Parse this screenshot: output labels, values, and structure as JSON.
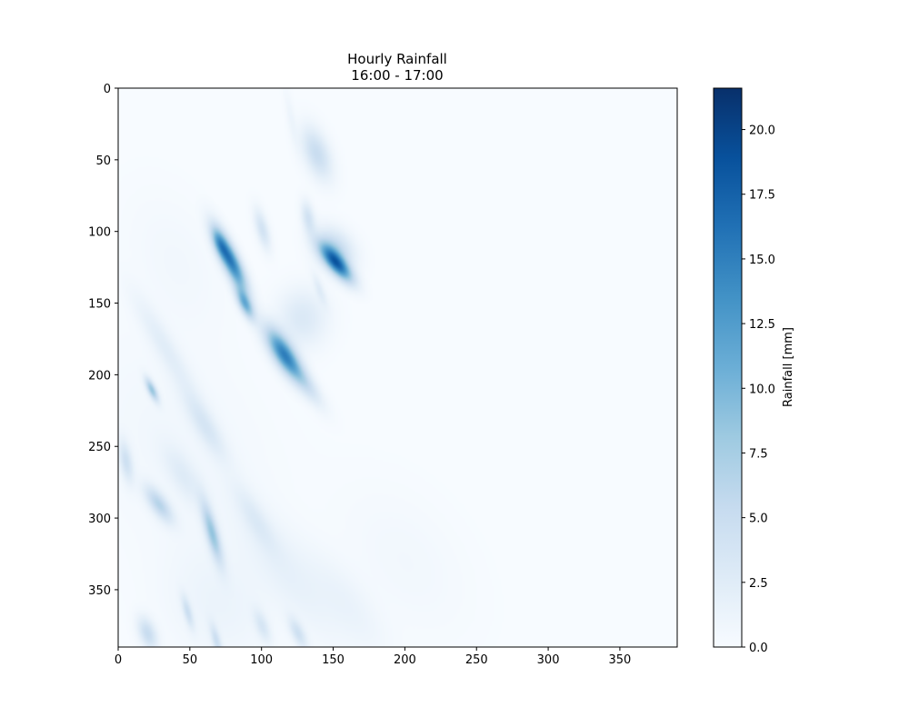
{
  "chart_data": {
    "type": "heatmap",
    "title": "Hourly Rainfall",
    "subtitle": "16:00 - 17:00",
    "xlabel": "",
    "ylabel": "",
    "xlim": [
      0,
      390
    ],
    "ylim": [
      390,
      0
    ],
    "xticks": [
      0,
      50,
      100,
      150,
      200,
      250,
      300,
      350
    ],
    "yticks": [
      0,
      50,
      100,
      150,
      200,
      250,
      300,
      350
    ],
    "colorbar": {
      "label": "Rainfall [mm]",
      "range": [
        0,
        21.6
      ],
      "ticks": [
        0.0,
        2.5,
        5.0,
        7.5,
        10.0,
        12.5,
        15.0,
        17.5,
        20.0
      ],
      "tick_labels": [
        "0.0",
        "2.5",
        "5.0",
        "7.5",
        "10.0",
        "12.5",
        "15.0",
        "17.5",
        "20.0"
      ],
      "colormap": "Blues",
      "colors": [
        "#f7fbff",
        "#deebf7",
        "#c6dbef",
        "#9ecae1",
        "#6baed6",
        "#4292c6",
        "#2171b5",
        "#08519c",
        "#08306b"
      ]
    },
    "grid": false,
    "features": [
      {
        "x": 78,
        "y": 120,
        "sx": 4,
        "sy": 16,
        "angle": 25,
        "peak": 15
      },
      {
        "x": 88,
        "y": 150,
        "sx": 3,
        "sy": 8,
        "angle": 25,
        "peak": 10
      },
      {
        "x": 115,
        "y": 185,
        "sx": 5,
        "sy": 14,
        "angle": 32,
        "peak": 14
      },
      {
        "x": 128,
        "y": 160,
        "sx": 12,
        "sy": 14,
        "angle": 0,
        "peak": 3
      },
      {
        "x": 130,
        "y": 205,
        "sx": 4,
        "sy": 14,
        "angle": 35,
        "peak": 4
      },
      {
        "x": 152,
        "y": 122,
        "sx": 4,
        "sy": 11,
        "angle": 40,
        "peak": 15
      },
      {
        "x": 150,
        "y": 112,
        "sx": 8,
        "sy": 11,
        "angle": 40,
        "peak": 6
      },
      {
        "x": 140,
        "y": 140,
        "sx": 2,
        "sy": 8,
        "angle": 20,
        "peak": 2
      },
      {
        "x": 138,
        "y": 45,
        "sx": 6,
        "sy": 13,
        "angle": 20,
        "peak": 5
      },
      {
        "x": 132,
        "y": 90,
        "sx": 3,
        "sy": 8,
        "angle": 10,
        "peak": 4
      },
      {
        "x": 100,
        "y": 98,
        "sx": 3,
        "sy": 10,
        "angle": 15,
        "peak": 4
      },
      {
        "x": 70,
        "y": 108,
        "sx": 3,
        "sy": 8,
        "angle": 20,
        "peak": 6
      },
      {
        "x": 32,
        "y": 180,
        "sx": 5,
        "sy": 28,
        "angle": 30,
        "peak": 2
      },
      {
        "x": 23,
        "y": 210,
        "sx": 2,
        "sy": 6,
        "angle": 25,
        "peak": 8
      },
      {
        "x": 60,
        "y": 235,
        "sx": 5,
        "sy": 18,
        "angle": 30,
        "peak": 3
      },
      {
        "x": 28,
        "y": 290,
        "sx": 4,
        "sy": 10,
        "angle": 35,
        "peak": 6
      },
      {
        "x": 65,
        "y": 310,
        "sx": 3,
        "sy": 15,
        "angle": 15,
        "peak": 8
      },
      {
        "x": 5,
        "y": 260,
        "sx": 3,
        "sy": 10,
        "angle": 10,
        "peak": 4
      },
      {
        "x": 45,
        "y": 270,
        "sx": 6,
        "sy": 16,
        "angle": 30,
        "peak": 2
      },
      {
        "x": 95,
        "y": 300,
        "sx": 5,
        "sy": 18,
        "angle": 30,
        "peak": 2
      },
      {
        "x": 120,
        "y": 340,
        "sx": 12,
        "sy": 40,
        "angle": 35,
        "peak": 1.5
      },
      {
        "x": 70,
        "y": 360,
        "sx": 25,
        "sy": 30,
        "angle": 30,
        "peak": 1.2
      },
      {
        "x": 20,
        "y": 380,
        "sx": 4,
        "sy": 8,
        "angle": 20,
        "peak": 5
      },
      {
        "x": 48,
        "y": 365,
        "sx": 2,
        "sy": 8,
        "angle": 15,
        "peak": 4
      },
      {
        "x": 68,
        "y": 385,
        "sx": 2,
        "sy": 8,
        "angle": 15,
        "peak": 4
      },
      {
        "x": 100,
        "y": 375,
        "sx": 3,
        "sy": 8,
        "angle": 20,
        "peak": 3
      },
      {
        "x": 125,
        "y": 380,
        "sx": 3,
        "sy": 8,
        "angle": 25,
        "peak": 4
      },
      {
        "x": 160,
        "y": 360,
        "sx": 10,
        "sy": 30,
        "angle": 35,
        "peak": 1.2
      },
      {
        "x": 120,
        "y": 20,
        "sx": 2,
        "sy": 14,
        "angle": 10,
        "peak": 1
      },
      {
        "x": 200,
        "y": 330,
        "sx": 25,
        "sy": 40,
        "angle": 35,
        "peak": 0.6
      },
      {
        "x": 40,
        "y": 120,
        "sx": 20,
        "sy": 35,
        "angle": 25,
        "peak": 0.6
      },
      {
        "x": 40,
        "y": 250,
        "sx": 40,
        "sy": 60,
        "angle": 30,
        "peak": 0.7
      }
    ]
  }
}
